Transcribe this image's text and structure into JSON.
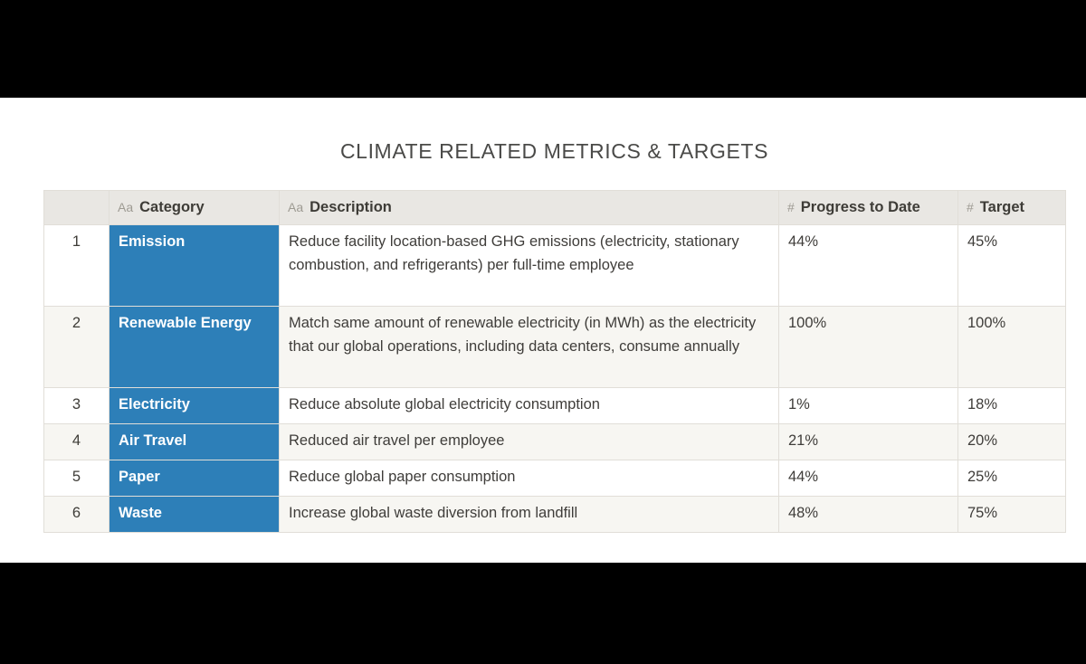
{
  "page": {
    "colors": {
      "letterbox": "#000000",
      "category_chip": "#2d7fb8",
      "header_background": "#e9e7e3",
      "row_stripe": "#f7f6f2",
      "border": "#e1ded8"
    }
  },
  "title": "CLIMATE RELATED METRICS & TARGETS",
  "table": {
    "columns": [
      {
        "icon": "",
        "label": ""
      },
      {
        "icon": "Aa",
        "label": "Category"
      },
      {
        "icon": "Aa",
        "label": "Description"
      },
      {
        "icon": "#",
        "label": "Progress to Date"
      },
      {
        "icon": "#",
        "label": "Target"
      }
    ],
    "rows": [
      {
        "num": "1",
        "category": "Emission",
        "description": "Reduce facility location-based GHG emissions (electricity, stationary combustion, and refrigerants) per full-time employee",
        "progress": "44%",
        "target": "45%"
      },
      {
        "num": "2",
        "category": "Renewable Energy",
        "description": "Match same amount of renewable electricity (in MWh) as the electricity that our global operations, including data centers, consume annually",
        "progress": "100%",
        "target": "100%"
      },
      {
        "num": "3",
        "category": "Electricity",
        "description": "Reduce absolute global electricity consumption",
        "progress": "1%",
        "target": "18%"
      },
      {
        "num": "4",
        "category": "Air Travel",
        "description": "Reduced air travel per employee",
        "progress": "21%",
        "target": "20%"
      },
      {
        "num": "5",
        "category": "Paper",
        "description": "Reduce global paper consumption",
        "progress": "44%",
        "target": "25%"
      },
      {
        "num": "6",
        "category": "Waste",
        "description": "Increase global waste diversion from landfill",
        "progress": "48%",
        "target": "75%"
      }
    ]
  }
}
